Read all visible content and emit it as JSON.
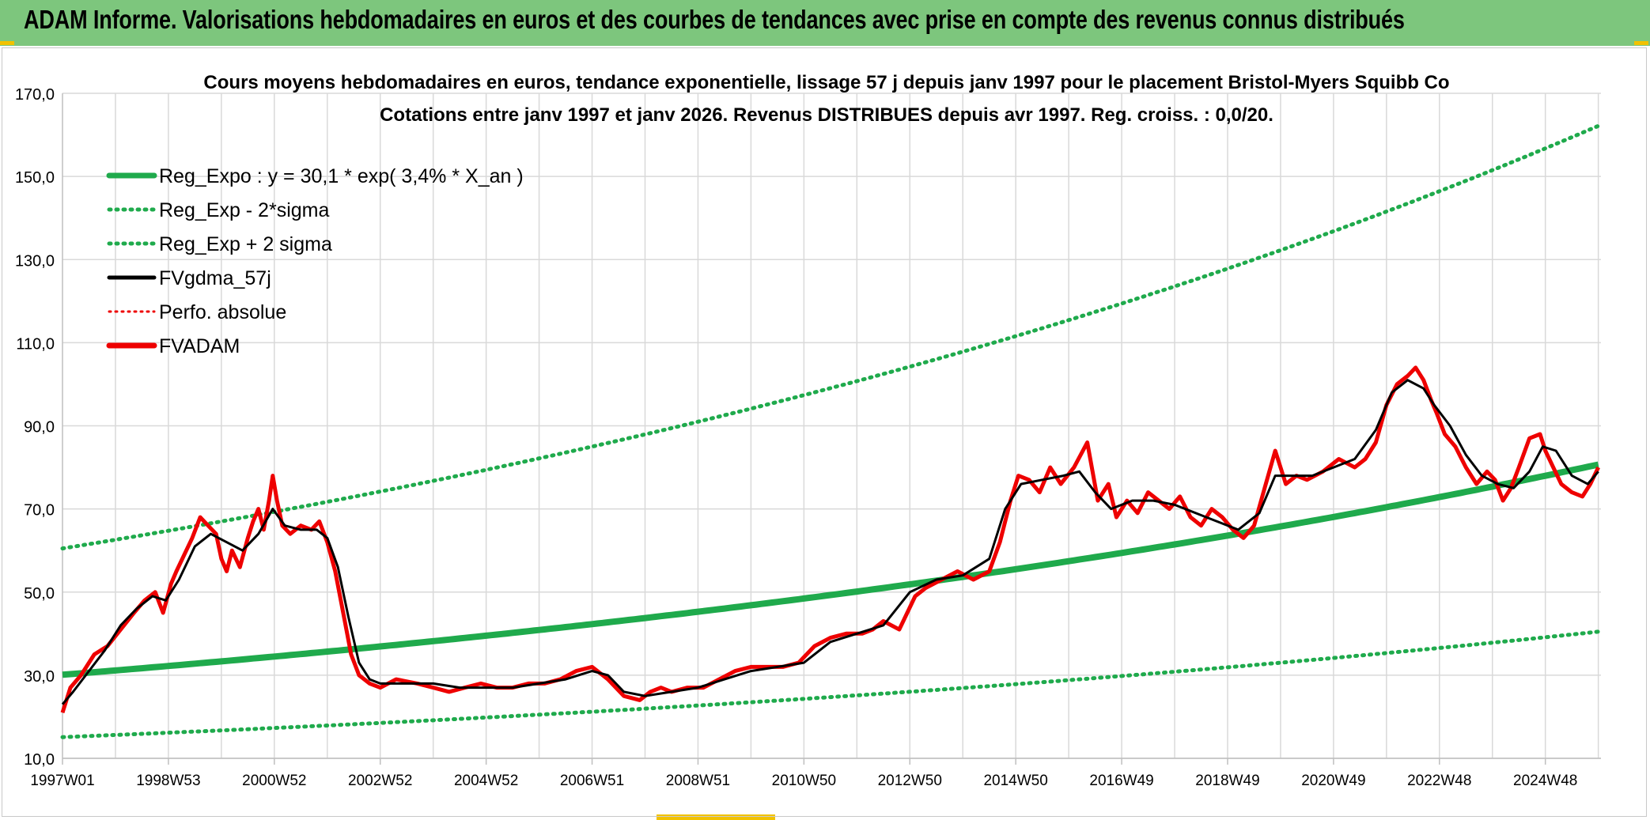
{
  "banner": {
    "title": "ADAM Informe. Valorisations hebdomadaires en euros et des courbes de tendances avec prise en compte des revenus connus distribués"
  },
  "colors": {
    "banner": "#7dc67d",
    "reg_expo": "#1faa4c",
    "fvgdma": "#000000",
    "fvadam": "#ee0000",
    "perfo": "#ee0000",
    "grid": "#d9d9d9"
  },
  "chart_data": {
    "type": "line",
    "title": "Cours moyens hebdomadaires en euros, tendance exponentielle, lissage 57 j depuis janv 1997 pour le placement Bristol-Myers Squibb Co",
    "subtitle": "Cotations entre janv 1997 et janv 2026. Revenus DISTRIBUES depuis avr 1997. Reg. croiss. : 0,0/20.",
    "xlabel": "",
    "ylabel": "",
    "x_range": [
      1997.0,
      2026.05
    ],
    "ylim": [
      10,
      170
    ],
    "yticks": [
      "10,0",
      "30,0",
      "50,0",
      "70,0",
      "90,0",
      "110,0",
      "130,0",
      "150,0",
      "170,0"
    ],
    "ytick_values": [
      10,
      30,
      50,
      70,
      90,
      110,
      130,
      150,
      170
    ],
    "xtick_labels": [
      "1997W01",
      "1998W53",
      "2000W52",
      "2002W52",
      "2004W52",
      "2006W51",
      "2008W51",
      "2010W50",
      "2012W50",
      "2014W50",
      "2016W49",
      "2018W49",
      "2020W49",
      "2022W48",
      "2024W48"
    ],
    "xtick_values": [
      1997.0,
      1999.0,
      2001.0,
      2003.0,
      2005.0,
      2007.0,
      2009.0,
      2011.0,
      2013.0,
      2015.0,
      2017.0,
      2019.0,
      2021.0,
      2023.0,
      2025.0
    ],
    "grid": true,
    "legend_position": "top-left",
    "legend": [
      {
        "key": "reg_expo",
        "label": "Reg_Expo : y = 30,1 * exp( 3,4% *  X_an )",
        "style": "solid-thick-green"
      },
      {
        "key": "reg_minus",
        "label": "Reg_Exp - 2*sigma",
        "style": "dotted-green"
      },
      {
        "key": "reg_plus",
        "label": "Reg_Exp + 2 sigma",
        "style": "dotted-green"
      },
      {
        "key": "fvgdma",
        "label": "FVgdma_57j",
        "style": "solid-black"
      },
      {
        "key": "perfo",
        "label": "Perfo. absolue",
        "style": "dotted-red"
      },
      {
        "key": "fvadam",
        "label": "FVADAM",
        "style": "solid-thick-red"
      }
    ],
    "regression": {
      "a": 30.1,
      "rate": 0.034,
      "lower_a": 15.1,
      "upper_a": 60.5
    },
    "series": [
      {
        "name": "FVADAM",
        "x": [
          1997.0,
          1997.15,
          1997.35,
          1997.6,
          1997.85,
          1998.1,
          1998.35,
          1998.55,
          1998.75,
          1998.9,
          1999.05,
          1999.15,
          1999.3,
          1999.45,
          1999.6,
          1999.75,
          1999.9,
          2000.0,
          2000.1,
          2000.2,
          2000.35,
          2000.5,
          2000.6,
          2000.7,
          2000.8,
          2000.9,
          2000.97,
          2001.05,
          2001.15,
          2001.3,
          2001.5,
          2001.7,
          2001.85,
          2002.0,
          2002.15,
          2002.3,
          2002.45,
          2002.6,
          2002.8,
          2003.0,
          2003.3,
          2003.7,
          2004.0,
          2004.3,
          2004.6,
          2004.9,
          2005.2,
          2005.5,
          2005.8,
          2006.1,
          2006.4,
          2006.7,
          2007.0,
          2007.3,
          2007.6,
          2007.9,
          2008.1,
          2008.3,
          2008.5,
          2008.8,
          2009.1,
          2009.4,
          2009.7,
          2010.0,
          2010.3,
          2010.6,
          2010.9,
          2011.2,
          2011.5,
          2011.8,
          2012.1,
          2012.3,
          2012.5,
          2012.8,
          2013.1,
          2013.3,
          2013.6,
          2013.9,
          2014.2,
          2014.5,
          2014.7,
          2014.9,
          2015.05,
          2015.25,
          2015.45,
          2015.65,
          2015.85,
          2016.1,
          2016.35,
          2016.55,
          2016.75,
          2016.9,
          2017.1,
          2017.3,
          2017.5,
          2017.7,
          2017.9,
          2018.1,
          2018.3,
          2018.5,
          2018.7,
          2018.9,
          2019.1,
          2019.3,
          2019.5,
          2019.7,
          2019.9,
          2020.1,
          2020.3,
          2020.5,
          2020.8,
          2021.1,
          2021.4,
          2021.6,
          2021.8,
          2022.0,
          2022.2,
          2022.4,
          2022.55,
          2022.7,
          2022.85,
          2022.95,
          2023.1,
          2023.3,
          2023.5,
          2023.7,
          2023.9,
          2024.05,
          2024.2,
          2024.35,
          2024.5,
          2024.7,
          2024.9,
          2025.0,
          2025.15,
          2025.3,
          2025.5,
          2025.7,
          2025.85,
          2026.0
        ],
        "values": [
          21,
          27,
          30,
          35,
          37,
          41,
          45,
          48,
          50,
          45,
          52,
          55,
          59,
          63,
          68,
          66,
          64,
          58,
          55,
          60,
          56,
          63,
          67,
          70,
          65,
          72,
          78,
          72,
          66,
          64,
          66,
          65,
          67,
          62,
          55,
          45,
          35,
          30,
          28,
          27,
          29,
          28,
          27,
          26,
          27,
          28,
          27,
          27,
          28,
          28,
          29,
          31,
          32,
          29,
          25,
          24,
          26,
          27,
          26,
          27,
          27,
          29,
          31,
          32,
          32,
          32,
          33,
          37,
          39,
          40,
          40,
          41,
          43,
          41,
          49,
          51,
          53,
          55,
          53,
          55,
          62,
          72,
          78,
          77,
          74,
          80,
          76,
          80,
          86,
          72,
          76,
          68,
          72,
          69,
          74,
          72,
          70,
          73,
          68,
          66,
          70,
          68,
          65,
          63,
          66,
          75,
          84,
          76,
          78,
          77,
          79,
          82,
          80,
          82,
          86,
          95,
          100,
          102,
          104,
          101,
          96,
          93,
          88,
          85,
          80,
          76,
          79,
          77,
          72,
          75,
          80,
          87,
          88,
          84,
          80,
          76,
          74,
          73,
          76,
          80
        ]
      },
      {
        "name": "FVgdma_57j",
        "x": [
          1997.0,
          1997.2,
          1997.5,
          1997.8,
          1998.1,
          1998.4,
          1998.7,
          1998.95,
          1999.2,
          1999.5,
          1999.8,
          2000.1,
          2000.4,
          2000.7,
          2000.97,
          2001.2,
          2001.5,
          2001.8,
          2002.0,
          2002.2,
          2002.4,
          2002.6,
          2002.8,
          2003.0,
          2003.5,
          2004.0,
          2004.5,
          2005.0,
          2005.5,
          2006.0,
          2006.5,
          2007.0,
          2007.3,
          2007.6,
          2008.0,
          2008.5,
          2009.0,
          2009.5,
          2010.0,
          2010.5,
          2011.0,
          2011.5,
          2012.0,
          2012.5,
          2013.0,
          2013.5,
          2014.0,
          2014.5,
          2014.8,
          2015.1,
          2015.5,
          2015.9,
          2016.2,
          2016.5,
          2016.8,
          2017.2,
          2017.6,
          2018.0,
          2018.4,
          2018.8,
          2019.2,
          2019.6,
          2019.9,
          2020.2,
          2020.6,
          2021.0,
          2021.4,
          2021.8,
          2022.1,
          2022.4,
          2022.7,
          2022.9,
          2023.2,
          2023.5,
          2023.8,
          2024.1,
          2024.4,
          2024.7,
          2024.95,
          2025.2,
          2025.5,
          2025.8,
          2026.0
        ],
        "values": [
          23,
          26,
          31,
          36,
          42,
          46,
          49,
          48,
          53,
          61,
          64,
          62,
          60,
          64,
          70,
          66,
          65,
          65,
          63,
          56,
          44,
          33,
          29,
          28,
          28,
          28,
          27,
          27,
          27,
          28,
          29,
          31,
          30,
          26,
          25,
          26,
          27,
          29,
          31,
          32,
          33,
          38,
          40,
          42,
          50,
          53,
          54,
          58,
          70,
          76,
          77,
          78,
          79,
          74,
          70,
          72,
          72,
          71,
          69,
          67,
          65,
          69,
          78,
          78,
          78,
          80,
          82,
          89,
          98,
          101,
          99,
          95,
          90,
          83,
          78,
          76,
          75,
          79,
          85,
          84,
          78,
          76,
          79
        ]
      }
    ]
  }
}
